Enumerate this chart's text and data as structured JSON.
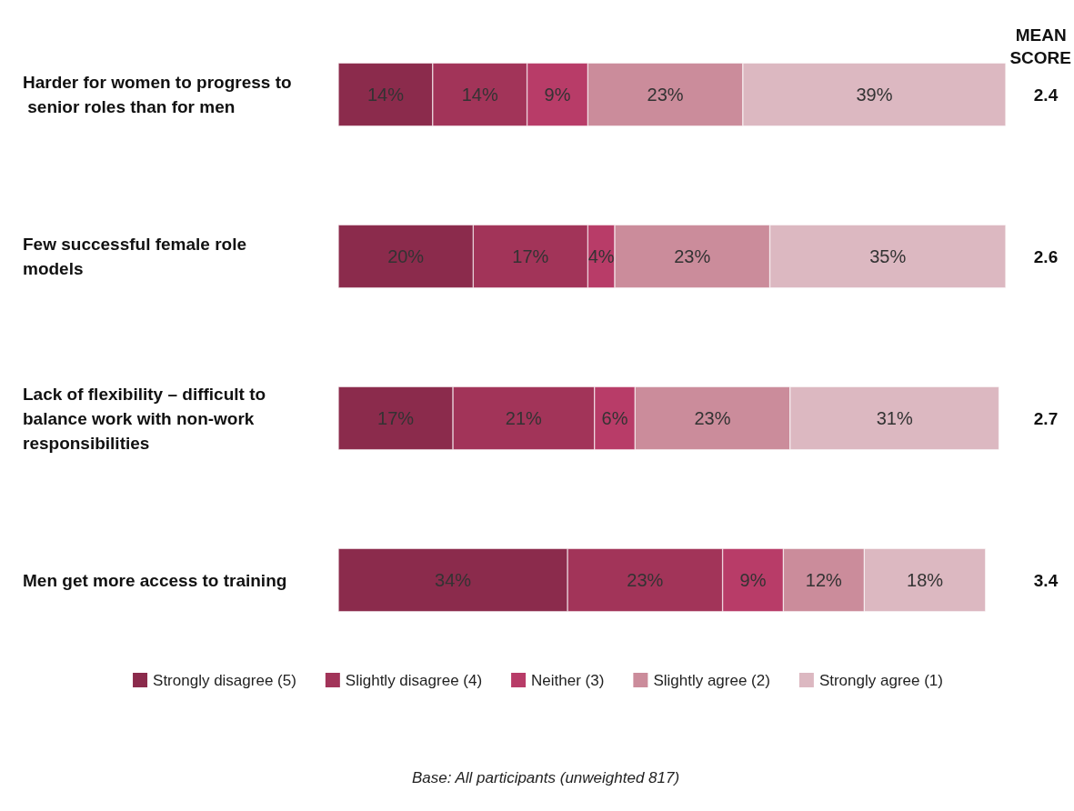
{
  "chart_data": {
    "type": "bar",
    "orientation": "horizontal",
    "stacked": true,
    "categories": [
      "Harder for women to progress to senior roles than for men",
      "Few successful female role models",
      "Lack of flexibility – difficult to balance work with non-work responsibilities",
      "Men get more access to training"
    ],
    "series": [
      {
        "name": "Strongly disagree (5)",
        "color": "#8b2b4c",
        "values": [
          14,
          20,
          17,
          34
        ],
        "value_labels": [
          "14%",
          "20%",
          "17%",
          "34%"
        ]
      },
      {
        "name": "Slightly disagree (4)",
        "color": "#a23459",
        "values": [
          14,
          17,
          21,
          23
        ],
        "value_labels": [
          "14%",
          "17%",
          "21%",
          "23%"
        ]
      },
      {
        "name": "Neither (3)",
        "color": "#b83c68",
        "values": [
          9,
          4,
          6,
          9
        ],
        "value_labels": [
          "9%",
          "4%",
          "6%",
          "9%"
        ]
      },
      {
        "name": "Slightly agree (2)",
        "color": "#cb8c9b",
        "values": [
          23,
          23,
          23,
          12
        ],
        "value_labels": [
          "23%",
          "23%",
          "23%",
          "12%"
        ]
      },
      {
        "name": "Strongly agree (1)",
        "color": "#dcb8c1",
        "values": [
          39,
          35,
          31,
          18
        ],
        "value_labels": [
          "39%",
          "35%",
          "31%",
          "18%"
        ]
      }
    ],
    "legend": "bottom",
    "annotations": [
      "MEAN SCORE",
      "2.4",
      "2.6",
      "2.7",
      "3.4",
      "Base: All participants (unweighted 817)"
    ]
  }
}
